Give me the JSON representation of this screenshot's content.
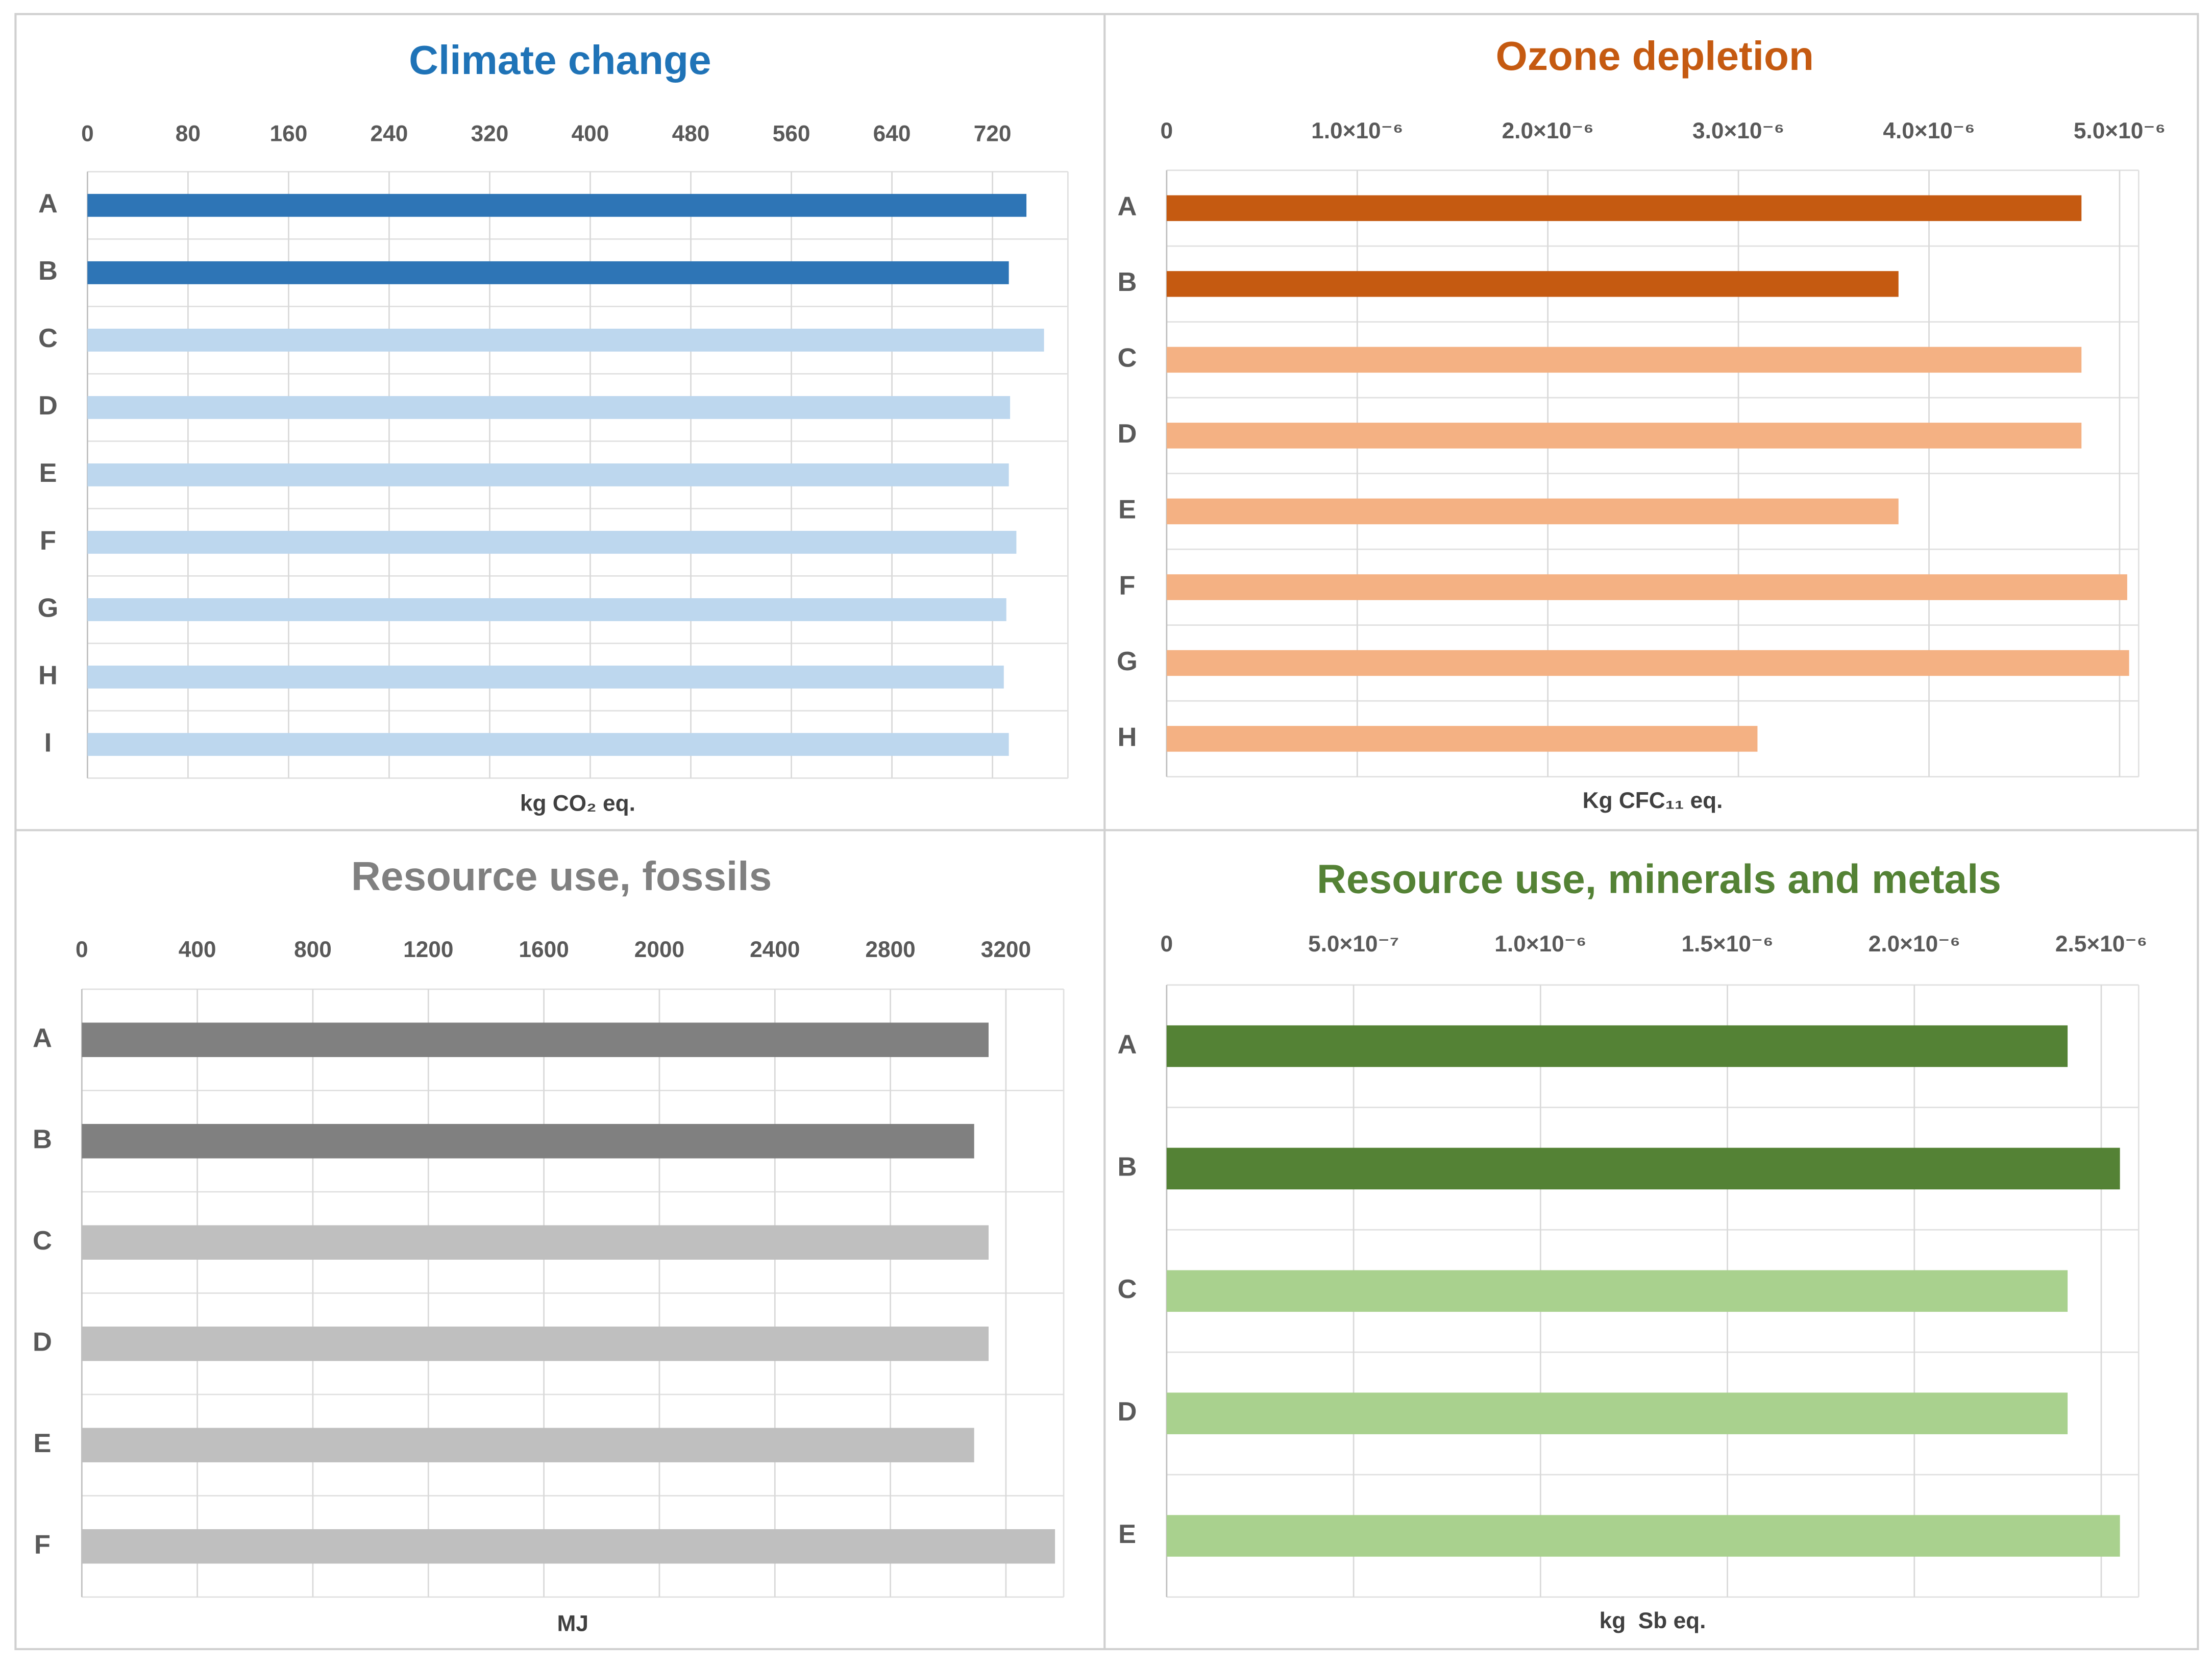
{
  "chart_data": [
    {
      "type": "bar",
      "title": "Climate change",
      "title_color": "#1f73b7",
      "x_label": "kg CO₂ eq.",
      "categories": [
        "A",
        "B",
        "C",
        "D",
        "E",
        "F",
        "G",
        "H",
        "I"
      ],
      "values": [
        747,
        733,
        761,
        734,
        733,
        739,
        731,
        729,
        733
      ],
      "colors": [
        "#2e75b6",
        "#2e75b6",
        "#bdd7ee",
        "#bdd7ee",
        "#bdd7ee",
        "#bdd7ee",
        "#bdd7ee",
        "#bdd7ee",
        "#bdd7ee"
      ],
      "xlim": [
        0,
        780
      ],
      "xticks": [
        0,
        80,
        160,
        240,
        320,
        400,
        480,
        560,
        640,
        720
      ],
      "grid": true
    },
    {
      "type": "bar",
      "title": "Ozone depletion",
      "title_color": "#c55a11",
      "x_label": "Kg CFC₁₁ eq.",
      "categories": [
        "A",
        "B",
        "C",
        "D",
        "E",
        "F",
        "G",
        "H"
      ],
      "values": [
        4.8e-06,
        3.84e-06,
        4.8e-06,
        4.8e-06,
        3.84e-06,
        5.04e-06,
        5.05e-06,
        3.1e-06
      ],
      "colors": [
        "#c55a11",
        "#c55a11",
        "#f4b183",
        "#f4b183",
        "#f4b183",
        "#f4b183",
        "#f4b183",
        "#f4b183"
      ],
      "xlim": [
        0,
        5.1e-06
      ],
      "xticks": [
        0,
        {
          "value": 1e-06,
          "label": "1.0×10⁻⁶"
        },
        {
          "value": 2e-06,
          "label": "2.0×10⁻⁶"
        },
        {
          "value": 3e-06,
          "label": "3.0×10⁻⁶"
        },
        {
          "value": 4e-06,
          "label": "4.0×10⁻⁶"
        },
        {
          "value": 5e-06,
          "label": "5.0×10⁻⁶"
        }
      ],
      "grid": true
    },
    {
      "type": "bar",
      "title": "Resource use, fossils",
      "title_color": "#808080",
      "x_label": "MJ",
      "categories": [
        "A",
        "B",
        "C",
        "D",
        "E",
        "F"
      ],
      "values": [
        3140,
        3090,
        3140,
        3140,
        3090,
        3370
      ],
      "colors": [
        "#808080",
        "#808080",
        "#bfbfbf",
        "#bfbfbf",
        "#bfbfbf",
        "#bfbfbf"
      ],
      "xlim": [
        0,
        3400
      ],
      "xticks": [
        0,
        400,
        800,
        1200,
        1600,
        2000,
        2400,
        2800,
        3200
      ],
      "grid": true
    },
    {
      "type": "bar",
      "title": "Resource use, minerals and metals",
      "title_color": "#548235",
      "x_label": "kg  Sb eq.",
      "categories": [
        "A",
        "B",
        "C",
        "D",
        "E"
      ],
      "values": [
        2.41e-06,
        2.55e-06,
        2.41e-06,
        2.41e-06,
        2.55e-06
      ],
      "colors": [
        "#548235",
        "#548235",
        "#a9d18e",
        "#a9d18e",
        "#a9d18e"
      ],
      "xlim": [
        0,
        2.6e-06
      ],
      "xticks": [
        0,
        {
          "value": 5e-07,
          "label": "5.0×10⁻⁷"
        },
        {
          "value": 1e-06,
          "label": "1.0×10⁻⁶"
        },
        {
          "value": 1.5e-06,
          "label": "1.5×10⁻⁶"
        },
        {
          "value": 2e-06,
          "label": "2.0×10⁻⁶"
        },
        {
          "value": 2.5e-06,
          "label": "2.5×10⁻⁶"
        }
      ],
      "grid": true
    }
  ]
}
